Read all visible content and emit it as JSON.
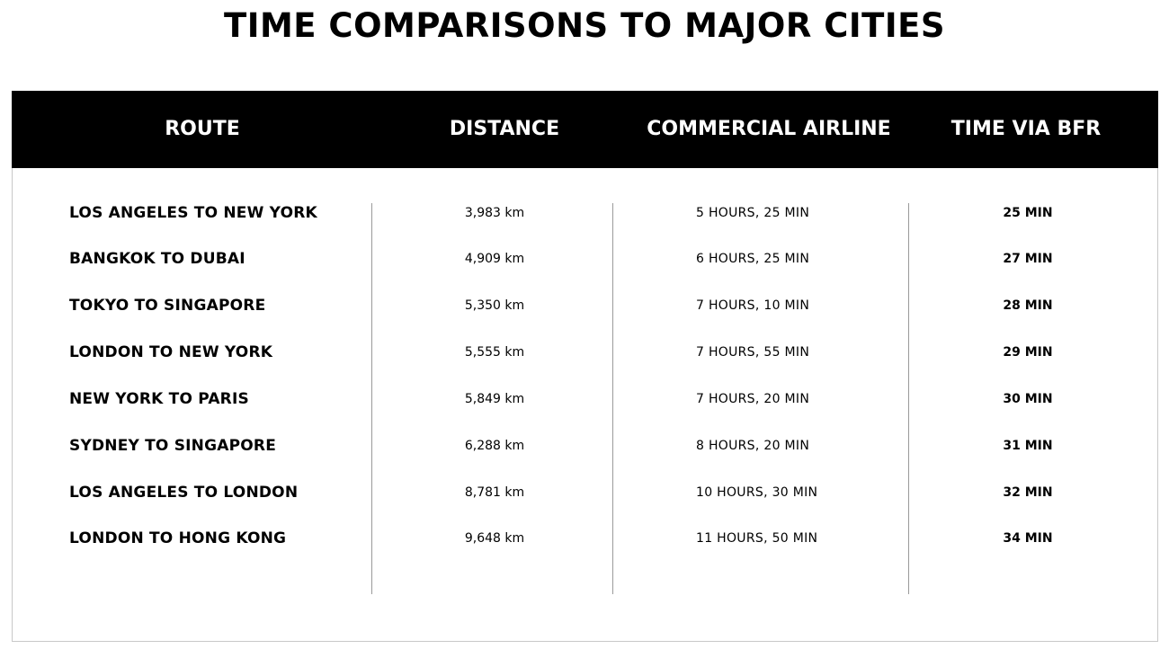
{
  "title": "TIME COMPARISONS TO MAJOR CITIES",
  "table": {
    "headers": {
      "route": "ROUTE",
      "distance": "DISTANCE",
      "airline": "COMMERCIAL AIRLINE",
      "bfr": "TIME VIA BFR"
    },
    "rows": [
      {
        "route": "LOS ANGELES TO NEW YORK",
        "distance": "3,983 km",
        "airline": "5 HOURS, 25 MIN",
        "bfr": "25 MIN"
      },
      {
        "route": "BANGKOK TO DUBAI",
        "distance": "4,909 km",
        "airline": "6 HOURS, 25 MIN",
        "bfr": "27 MIN"
      },
      {
        "route": "TOKYO TO SINGAPORE",
        "distance": "5,350 km",
        "airline": "7 HOURS, 10 MIN",
        "bfr": "28 MIN"
      },
      {
        "route": "LONDON TO NEW YORK",
        "distance": "5,555 km",
        "airline": "7 HOURS, 55 MIN",
        "bfr": "29 MIN"
      },
      {
        "route": "NEW YORK TO PARIS",
        "distance": "5,849 km",
        "airline": "7 HOURS, 20 MIN",
        "bfr": "30 MIN"
      },
      {
        "route": "SYDNEY TO SINGAPORE",
        "distance": "6,288 km",
        "airline": "8 HOURS, 20 MIN",
        "bfr": "31 MIN"
      },
      {
        "route": "LOS ANGELES TO LONDON",
        "distance": "8,781 km",
        "airline": "10 HOURS, 30 MIN",
        "bfr": "32 MIN"
      },
      {
        "route": "LONDON TO HONG KONG",
        "distance": "9,648 km",
        "airline": "11 HOURS, 50 MIN",
        "bfr": "34 MIN"
      }
    ]
  }
}
